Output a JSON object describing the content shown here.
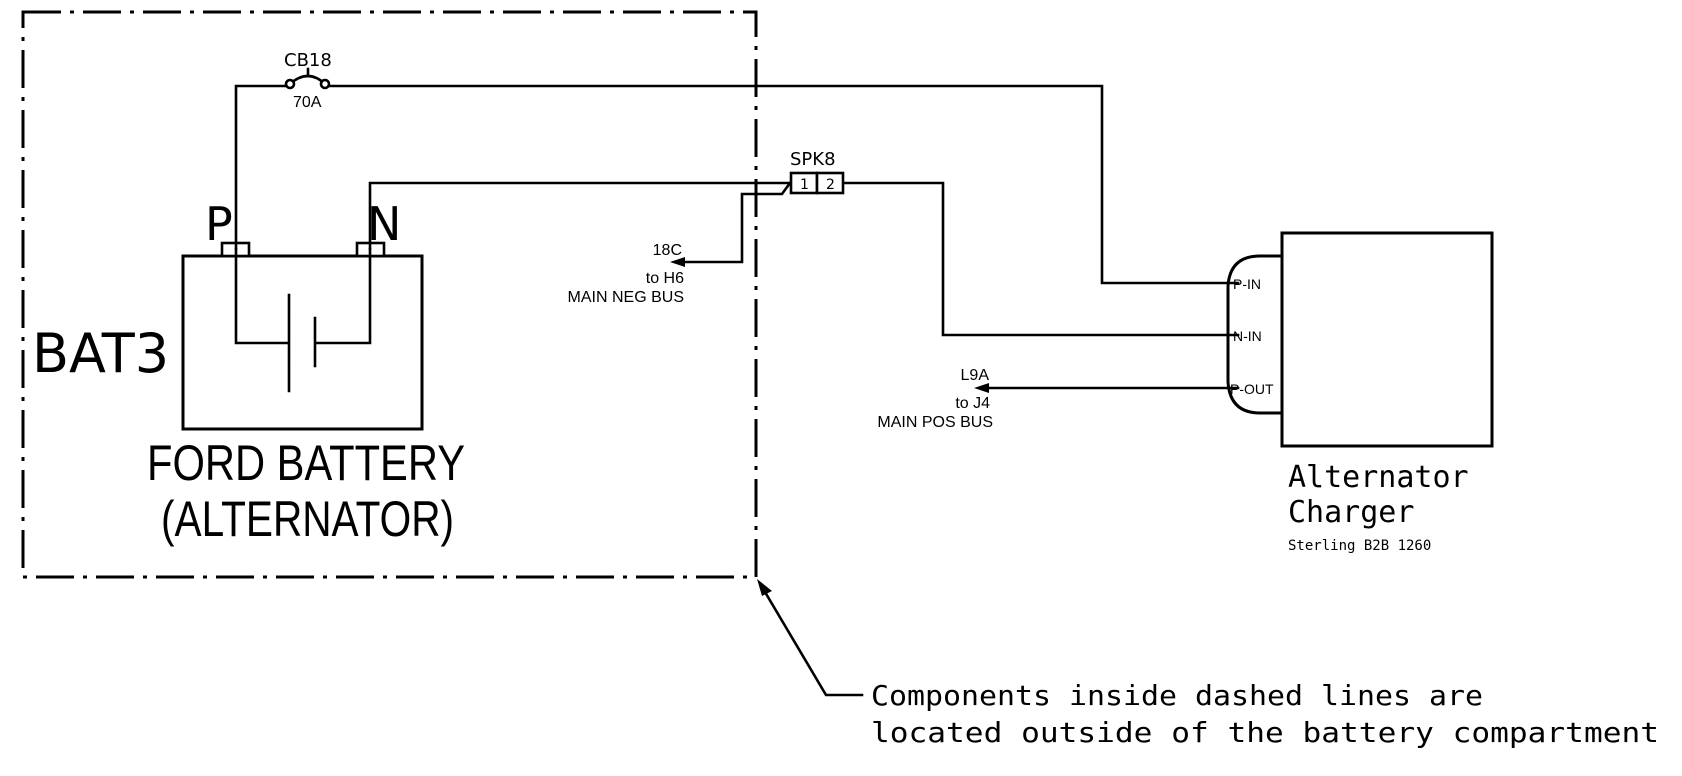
{
  "battery": {
    "ref": "BAT3",
    "name_line1": "FORD BATTERY",
    "name_line2": "(ALTERNATOR)",
    "pos_terminal": "P",
    "neg_terminal": "N"
  },
  "breaker": {
    "ref": "CB18",
    "rating": "70A"
  },
  "splice": {
    "ref": "SPK8",
    "pin1": "1",
    "pin2": "2"
  },
  "neg_lead": {
    "wire": "18C",
    "dest": "to H6",
    "bus": "MAIN NEG BUS"
  },
  "pos_lead": {
    "wire": "L9A",
    "dest": "to J4",
    "bus": "MAIN POS BUS"
  },
  "charger": {
    "title_line1": "Alternator",
    "title_line2": "Charger",
    "model": "Sterling B2B 1260",
    "pins": [
      "P-IN",
      "N-IN",
      "P-OUT"
    ]
  },
  "note": {
    "line1": "Components inside dashed lines are",
    "line2": "located outside of the battery compartment"
  }
}
